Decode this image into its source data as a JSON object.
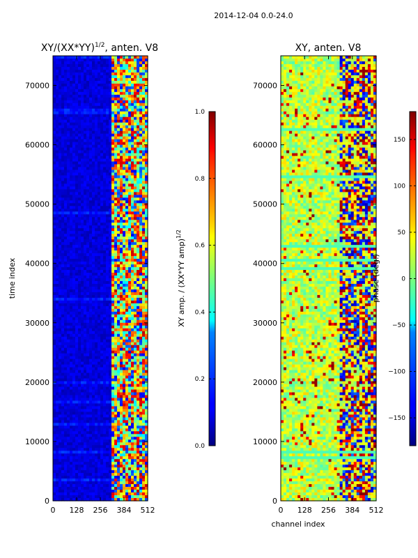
{
  "figure": {
    "suptitle": "2014-12-04 0.0-24.0"
  },
  "chart_data": [
    {
      "type": "heatmap",
      "title": "XY/(XX*YY)^{1/2}, anten. V8",
      "title_main": "XY/(XX*YY)",
      "title_sup": "1/2",
      "title_tail": ", anten. V8",
      "xlabel": "",
      "ylabel": "time index",
      "xlim": [
        0,
        512
      ],
      "ylim": [
        0,
        75000
      ],
      "x_ticks": [
        0,
        128,
        256,
        384,
        512
      ],
      "x_tick_labels": [
        "0",
        "128",
        "256",
        "384",
        "512"
      ],
      "y_ticks": [
        0,
        10000,
        20000,
        30000,
        40000,
        50000,
        60000,
        70000
      ],
      "y_tick_labels": [
        "0",
        "10000",
        "20000",
        "30000",
        "40000",
        "50000",
        "60000",
        "70000"
      ],
      "colormap": "jet",
      "colorbar": {
        "label": "XY amp. / (XX*YY amp)^{1/2}",
        "label_main": "XY amp. / (XX*YY amp)",
        "label_sup": "1/2",
        "vmin": 0.0,
        "vmax": 1.0,
        "ticks": [
          0.0,
          0.2,
          0.4,
          0.6,
          0.8,
          1.0
        ],
        "tick_labels": [
          "0.0",
          "0.2",
          "0.4",
          "0.6",
          "0.8",
          "1.0"
        ]
      }
    },
    {
      "type": "heatmap",
      "title": "XY, anten. V8",
      "xlabel": "channel index",
      "ylabel": "",
      "xlim": [
        0,
        512
      ],
      "ylim": [
        0,
        75000
      ],
      "x_ticks": [
        0,
        128,
        256,
        384,
        512
      ],
      "x_tick_labels": [
        "0",
        "128",
        "256",
        "384",
        "512"
      ],
      "y_ticks": [
        0,
        10000,
        20000,
        30000,
        40000,
        50000,
        60000,
        70000
      ],
      "y_tick_labels": [
        "0",
        "10000",
        "20000",
        "30000",
        "40000",
        "50000",
        "60000",
        "70000"
      ],
      "colormap": "jet",
      "colorbar": {
        "label": "phase (deg.)",
        "vmin": -180,
        "vmax": 180,
        "ticks": [
          -150,
          -100,
          -50,
          0,
          50,
          100,
          150
        ],
        "tick_labels": [
          "−150",
          "−100",
          "−50",
          "0",
          "50",
          "100",
          "150"
        ]
      }
    }
  ]
}
